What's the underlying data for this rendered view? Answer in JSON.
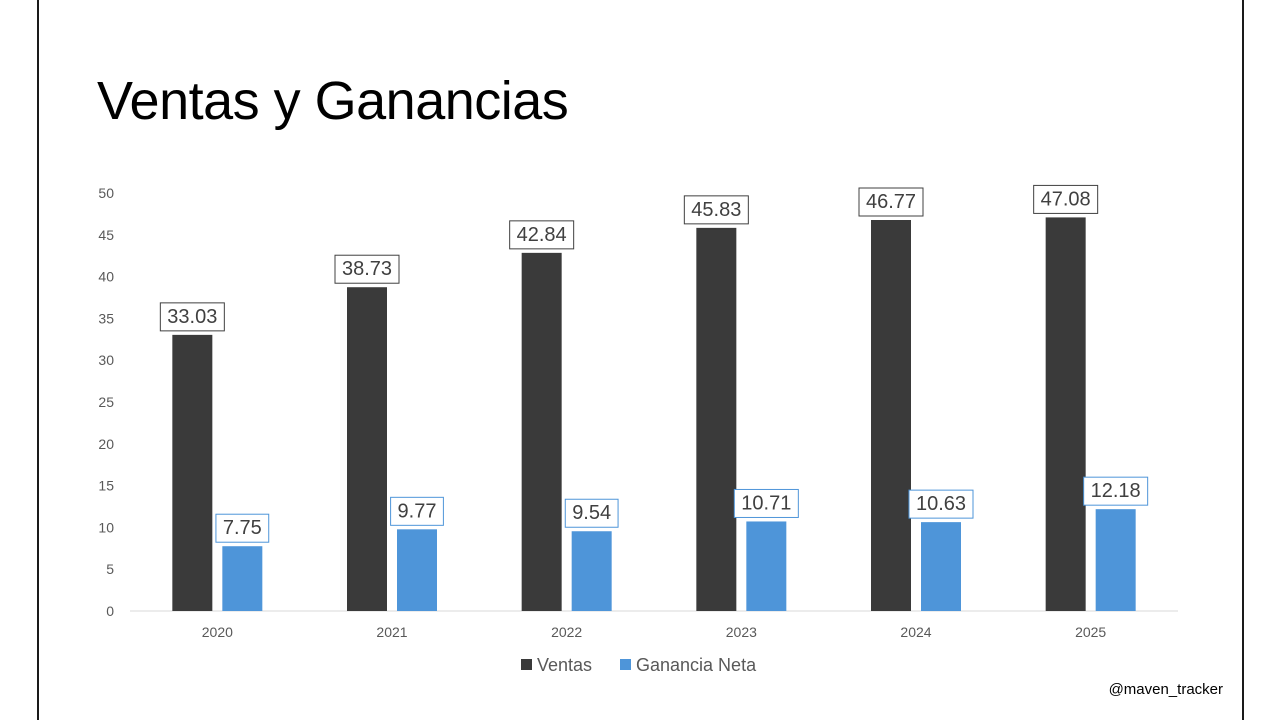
{
  "slide": {
    "title": "Ventas y Ganancias",
    "credit": "@maven_tracker"
  },
  "colors": {
    "ventas": "#3a3a3a",
    "ganancia": "#4e95d9",
    "axis_text": "#595959",
    "baseline": "#d9d9d9"
  },
  "chart_data": {
    "type": "bar",
    "title": "Ventas y Ganancias",
    "xlabel": "",
    "ylabel": "",
    "categories": [
      "2020",
      "2021",
      "2022",
      "2023",
      "2024",
      "2025"
    ],
    "series": [
      {
        "name": "Ventas",
        "values": [
          33.03,
          38.73,
          42.84,
          45.83,
          46.77,
          47.08
        ]
      },
      {
        "name": "Ganancia Neta",
        "values": [
          7.75,
          9.77,
          9.54,
          10.71,
          10.63,
          12.18
        ]
      }
    ],
    "ylim": [
      0,
      50
    ],
    "yticks": [
      0,
      5,
      10,
      15,
      20,
      25,
      30,
      35,
      40,
      45,
      50
    ],
    "grid": false,
    "legend": "bottom",
    "data_labels": true
  }
}
